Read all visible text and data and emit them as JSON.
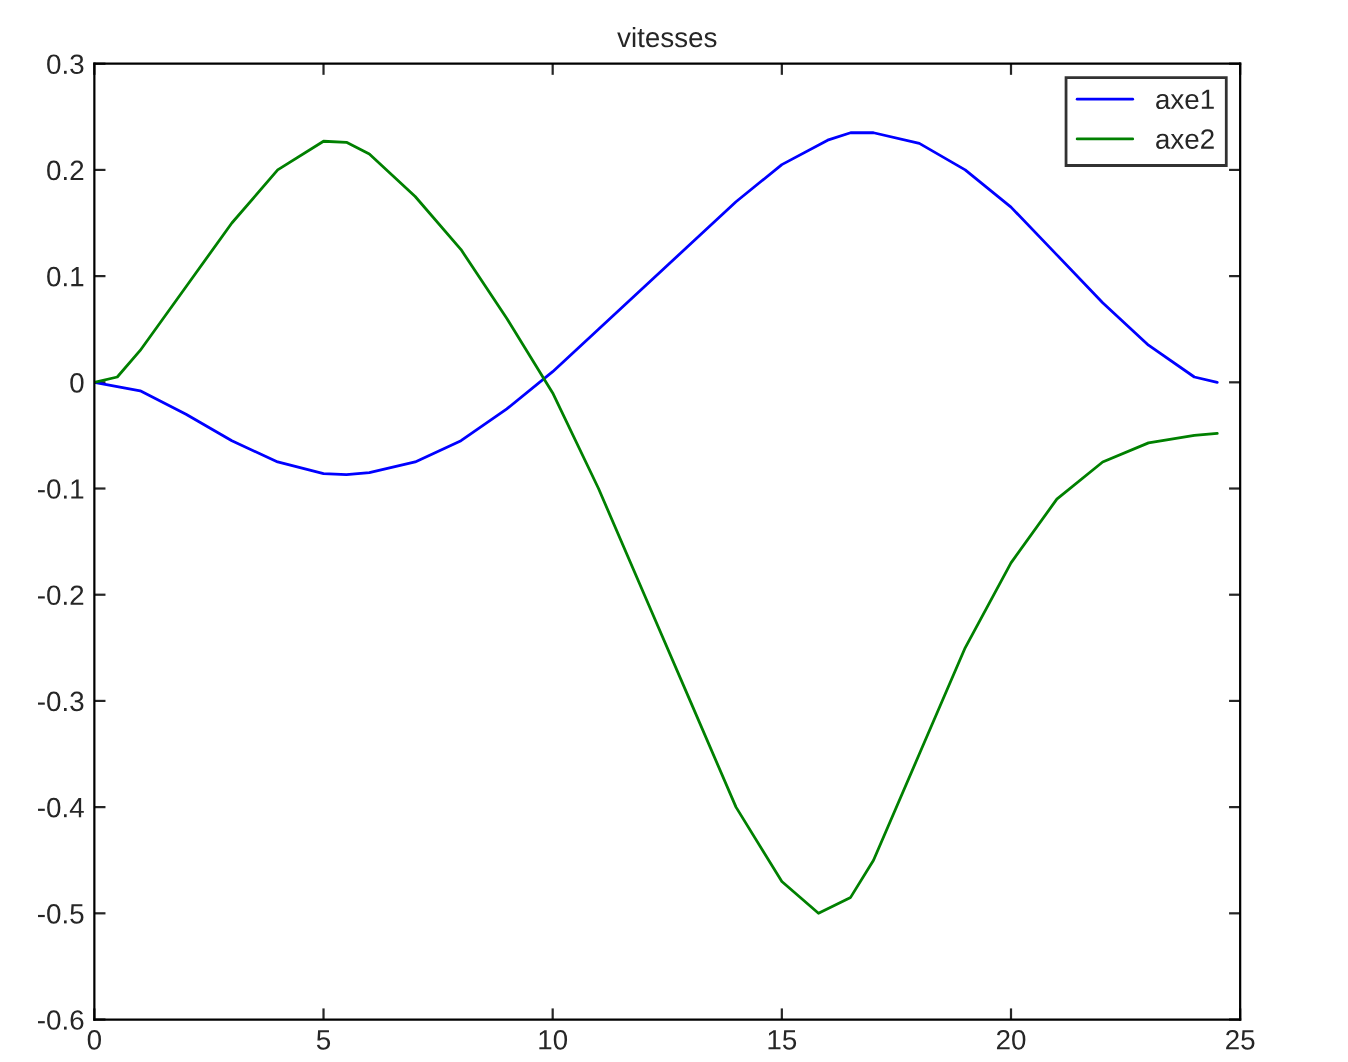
{
  "chart_data": {
    "type": "line",
    "title": "vitesses",
    "xlim": [
      0,
      25
    ],
    "xticks": [
      0,
      5,
      10,
      15,
      20,
      25
    ],
    "ylim": [
      -0.6,
      0.3
    ],
    "yticks": [
      -0.6,
      -0.5,
      -0.4,
      -0.3,
      -0.2,
      -0.1,
      0,
      0.1,
      0.2,
      0.3
    ],
    "grid": false,
    "legend": "top right",
    "series": [
      {
        "name": "axe1",
        "color": "#0000ff",
        "x": [
          0,
          1,
          2,
          3,
          4,
          5,
          5.5,
          6,
          7,
          8,
          9,
          10,
          11,
          12,
          13,
          14,
          15,
          16,
          16.5,
          17,
          18,
          19,
          20,
          21,
          22,
          23,
          24,
          24.5
        ],
        "values": [
          0,
          -0.008,
          -0.03,
          -0.055,
          -0.075,
          -0.086,
          -0.087,
          -0.085,
          -0.075,
          -0.055,
          -0.025,
          0.01,
          0.05,
          0.09,
          0.13,
          0.17,
          0.205,
          0.228,
          0.235,
          0.235,
          0.225,
          0.2,
          0.165,
          0.12,
          0.075,
          0.035,
          0.005,
          0
        ]
      },
      {
        "name": "axe2",
        "color": "#008000",
        "x": [
          0,
          0.5,
          1,
          2,
          3,
          4,
          5,
          5.5,
          6,
          7,
          8,
          9,
          10,
          11,
          12,
          13,
          14,
          15,
          15.8,
          16.5,
          17,
          18,
          19,
          20,
          21,
          22,
          23,
          24,
          24.5
        ],
        "values": [
          0,
          0.005,
          0.03,
          0.09,
          0.15,
          0.2,
          0.227,
          0.226,
          0.215,
          0.175,
          0.125,
          0.06,
          -0.01,
          -0.1,
          -0.2,
          -0.3,
          -0.4,
          -0.47,
          -0.5,
          -0.485,
          -0.45,
          -0.35,
          -0.25,
          -0.17,
          -0.11,
          -0.075,
          -0.057,
          -0.05,
          -0.048
        ]
      }
    ]
  }
}
